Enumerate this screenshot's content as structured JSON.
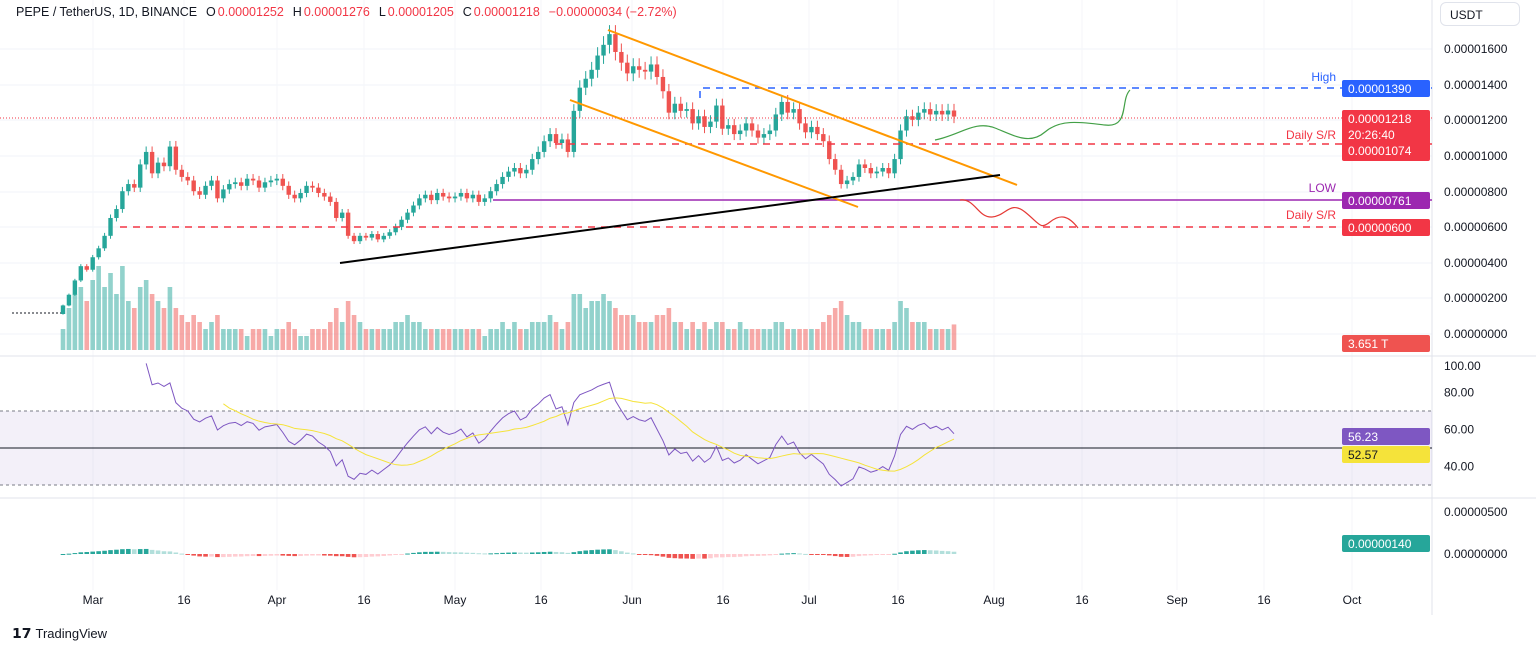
{
  "header": {
    "symbol": "PEPE / TetherUS, 1D, BINANCE",
    "o_label": "O",
    "o": "0.00001252",
    "h_label": "H",
    "h": "0.00001276",
    "l_label": "L",
    "l": "0.00001205",
    "c_label": "C",
    "c": "0.00001218",
    "change": "−0.00000034 (−2.72%)"
  },
  "currency": "USDT",
  "footer": {
    "brand": "TradingView"
  },
  "colors": {
    "up": "#26a69a",
    "down": "#ef5350",
    "high": "#2962ff",
    "sr": "#f23645",
    "low": "#9c27b0",
    "rsi": "#7e57c2",
    "rsi_ma": "#f5e33a",
    "channel": "#ff9800"
  },
  "chart_data": [
    {
      "type": "candlestick",
      "title": "PEPE / TetherUS, 1D, BINANCE",
      "x_ticks": [
        "Mar",
        "16",
        "Apr",
        "16",
        "May",
        "16",
        "Jun",
        "16",
        "Jul",
        "16",
        "Aug",
        "16",
        "Sep",
        "16",
        "Oct"
      ],
      "y_ticks": [
        "0.00001600",
        "0.00001400",
        "0.00001200",
        "0.00001000",
        "0.00000800",
        "0.00000600",
        "0.00000400",
        "0.00000200",
        "0.00000000"
      ],
      "closes": [
        1.6e-06,
        2.2e-06,
        3e-06,
        3.8e-06,
        3.6e-06,
        4.3e-06,
        4.8e-06,
        5.5e-06,
        6.5e-06,
        7e-06,
        8e-06,
        8.4e-06,
        8.2e-06,
        9.5e-06,
        1.02e-05,
        9e-06,
        9.6e-06,
        9.4e-06,
        1.05e-05,
        9.2e-06,
        8.8e-06,
        8.6e-06,
        8e-06,
        7.8e-06,
        8.3e-06,
        8.6e-06,
        7.6e-06,
        8.1e-06,
        8.4e-06,
        8.5e-06,
        8.3e-06,
        8.7e-06,
        8.6e-06,
        8.2e-06,
        8.5e-06,
        8.6e-06,
        8.7e-06,
        8.3e-06,
        7.8e-06,
        7.6e-06,
        7.9e-06,
        8.3e-06,
        8.2e-06,
        7.9e-06,
        7.7e-06,
        7.4e-06,
        6.5e-06,
        6.8e-06,
        5.5e-06,
        5.2e-06,
        5.5e-06,
        5.4e-06,
        5.6e-06,
        5.3e-06,
        5.5e-06,
        5.7e-06,
        6e-06,
        6.4e-06,
        6.8e-06,
        7.2e-06,
        7.6e-06,
        7.8e-06,
        7.5e-06,
        7.9e-06,
        7.7e-06,
        7.6e-06,
        7.7e-06,
        7.9e-06,
        7.6e-06,
        7.8e-06,
        7.4e-06,
        7.6e-06,
        8e-06,
        8.4e-06,
        8.8e-06,
        9.1e-06,
        9.3e-06,
        9e-06,
        9.2e-06,
        9.8e-06,
        1.02e-05,
        1.08e-05,
        1.12e-05,
        1.07e-05,
        1.09e-05,
        1.02e-05,
        1.25e-05,
        1.38e-05,
        1.43e-05,
        1.48e-05,
        1.56e-05,
        1.62e-05,
        1.68e-05,
        1.58e-05,
        1.52e-05,
        1.46e-05,
        1.5e-05,
        1.48e-05,
        1.47e-05,
        1.51e-05,
        1.44e-05,
        1.36e-05,
        1.24e-05,
        1.29e-05,
        1.25e-05,
        1.26e-05,
        1.18e-05,
        1.22e-05,
        1.16e-05,
        1.19e-05,
        1.28e-05,
        1.15e-05,
        1.17e-05,
        1.12e-05,
        1.14e-05,
        1.18e-05,
        1.14e-05,
        1.1e-05,
        1.12e-05,
        1.14e-05,
        1.23e-05,
        1.3e-05,
        1.24e-05,
        1.26e-05,
        1.18e-05,
        1.13e-05,
        1.16e-05,
        1.12e-05,
        1.08e-05,
        9.8e-06,
        9.2e-06,
        8.4e-06,
        8.6e-06,
        8.8e-06,
        9.5e-06,
        9.3e-06,
        9e-06,
        9.1e-06,
        9.3e-06,
        9e-06,
        9.8e-06,
        1.14e-05,
        1.22e-05,
        1.2e-05,
        1.24e-05,
        1.26e-05,
        1.23e-05,
        1.25e-05,
        1.23e-05,
        1.252e-05,
        1.218e-05
      ],
      "volume_T": [
        3,
        6,
        8,
        9,
        7,
        10,
        12,
        9,
        11,
        8,
        12,
        7,
        6,
        9,
        10,
        8,
        7,
        6,
        9,
        6,
        5,
        4,
        5,
        4,
        3,
        4,
        5,
        3,
        3,
        3,
        3,
        2,
        3,
        3,
        3,
        2,
        3,
        3,
        4,
        3,
        2,
        2,
        3,
        3,
        3,
        4,
        6,
        4,
        7,
        5,
        4,
        3,
        3,
        3,
        3,
        3,
        4,
        4,
        5,
        4,
        4,
        3,
        3,
        3,
        3,
        3,
        3,
        3,
        3,
        3,
        3,
        2,
        3,
        3,
        4,
        3,
        4,
        3,
        3,
        4,
        4,
        4,
        5,
        4,
        3,
        4,
        8,
        8,
        6,
        7,
        7,
        8,
        7,
        6,
        5,
        5,
        5,
        4,
        4,
        4,
        5,
        5,
        6,
        4,
        4,
        3,
        4,
        3,
        4,
        3,
        4,
        4,
        3,
        3,
        4,
        3,
        3,
        3,
        3,
        3,
        4,
        4,
        3,
        3,
        3,
        3,
        3,
        3,
        4,
        5,
        6,
        7,
        5,
        4,
        4,
        3,
        3,
        3,
        3,
        3,
        4,
        7,
        6,
        4,
        4,
        4,
        3,
        3,
        3,
        3,
        3.651
      ],
      "levels": [
        {
          "label": "High",
          "value": "0.00001390",
          "color": "#2962ff"
        },
        {
          "label": "Daily S/R",
          "value": "0.00001074",
          "color": "#f23645"
        },
        {
          "label": "LOW",
          "value": "0.00000761",
          "color": "#9c27b0"
        },
        {
          "label": "Daily S/R",
          "value": "0.00000600",
          "color": "#f23645"
        }
      ],
      "last_price": "0.00001218",
      "countdown": "20:26:40",
      "volume_label": "3.651 T"
    },
    {
      "type": "line",
      "indicator": "RSI",
      "y_ticks": [
        "100.00",
        "80.00",
        "60.00",
        "40.00"
      ],
      "rsi_value": "56.23",
      "rsi_ma_value": "52.57"
    },
    {
      "type": "bar",
      "indicator": "MACD histogram",
      "y_ticks": [
        "0.00000500",
        "0.00000000"
      ],
      "value": "0.00000140"
    }
  ]
}
